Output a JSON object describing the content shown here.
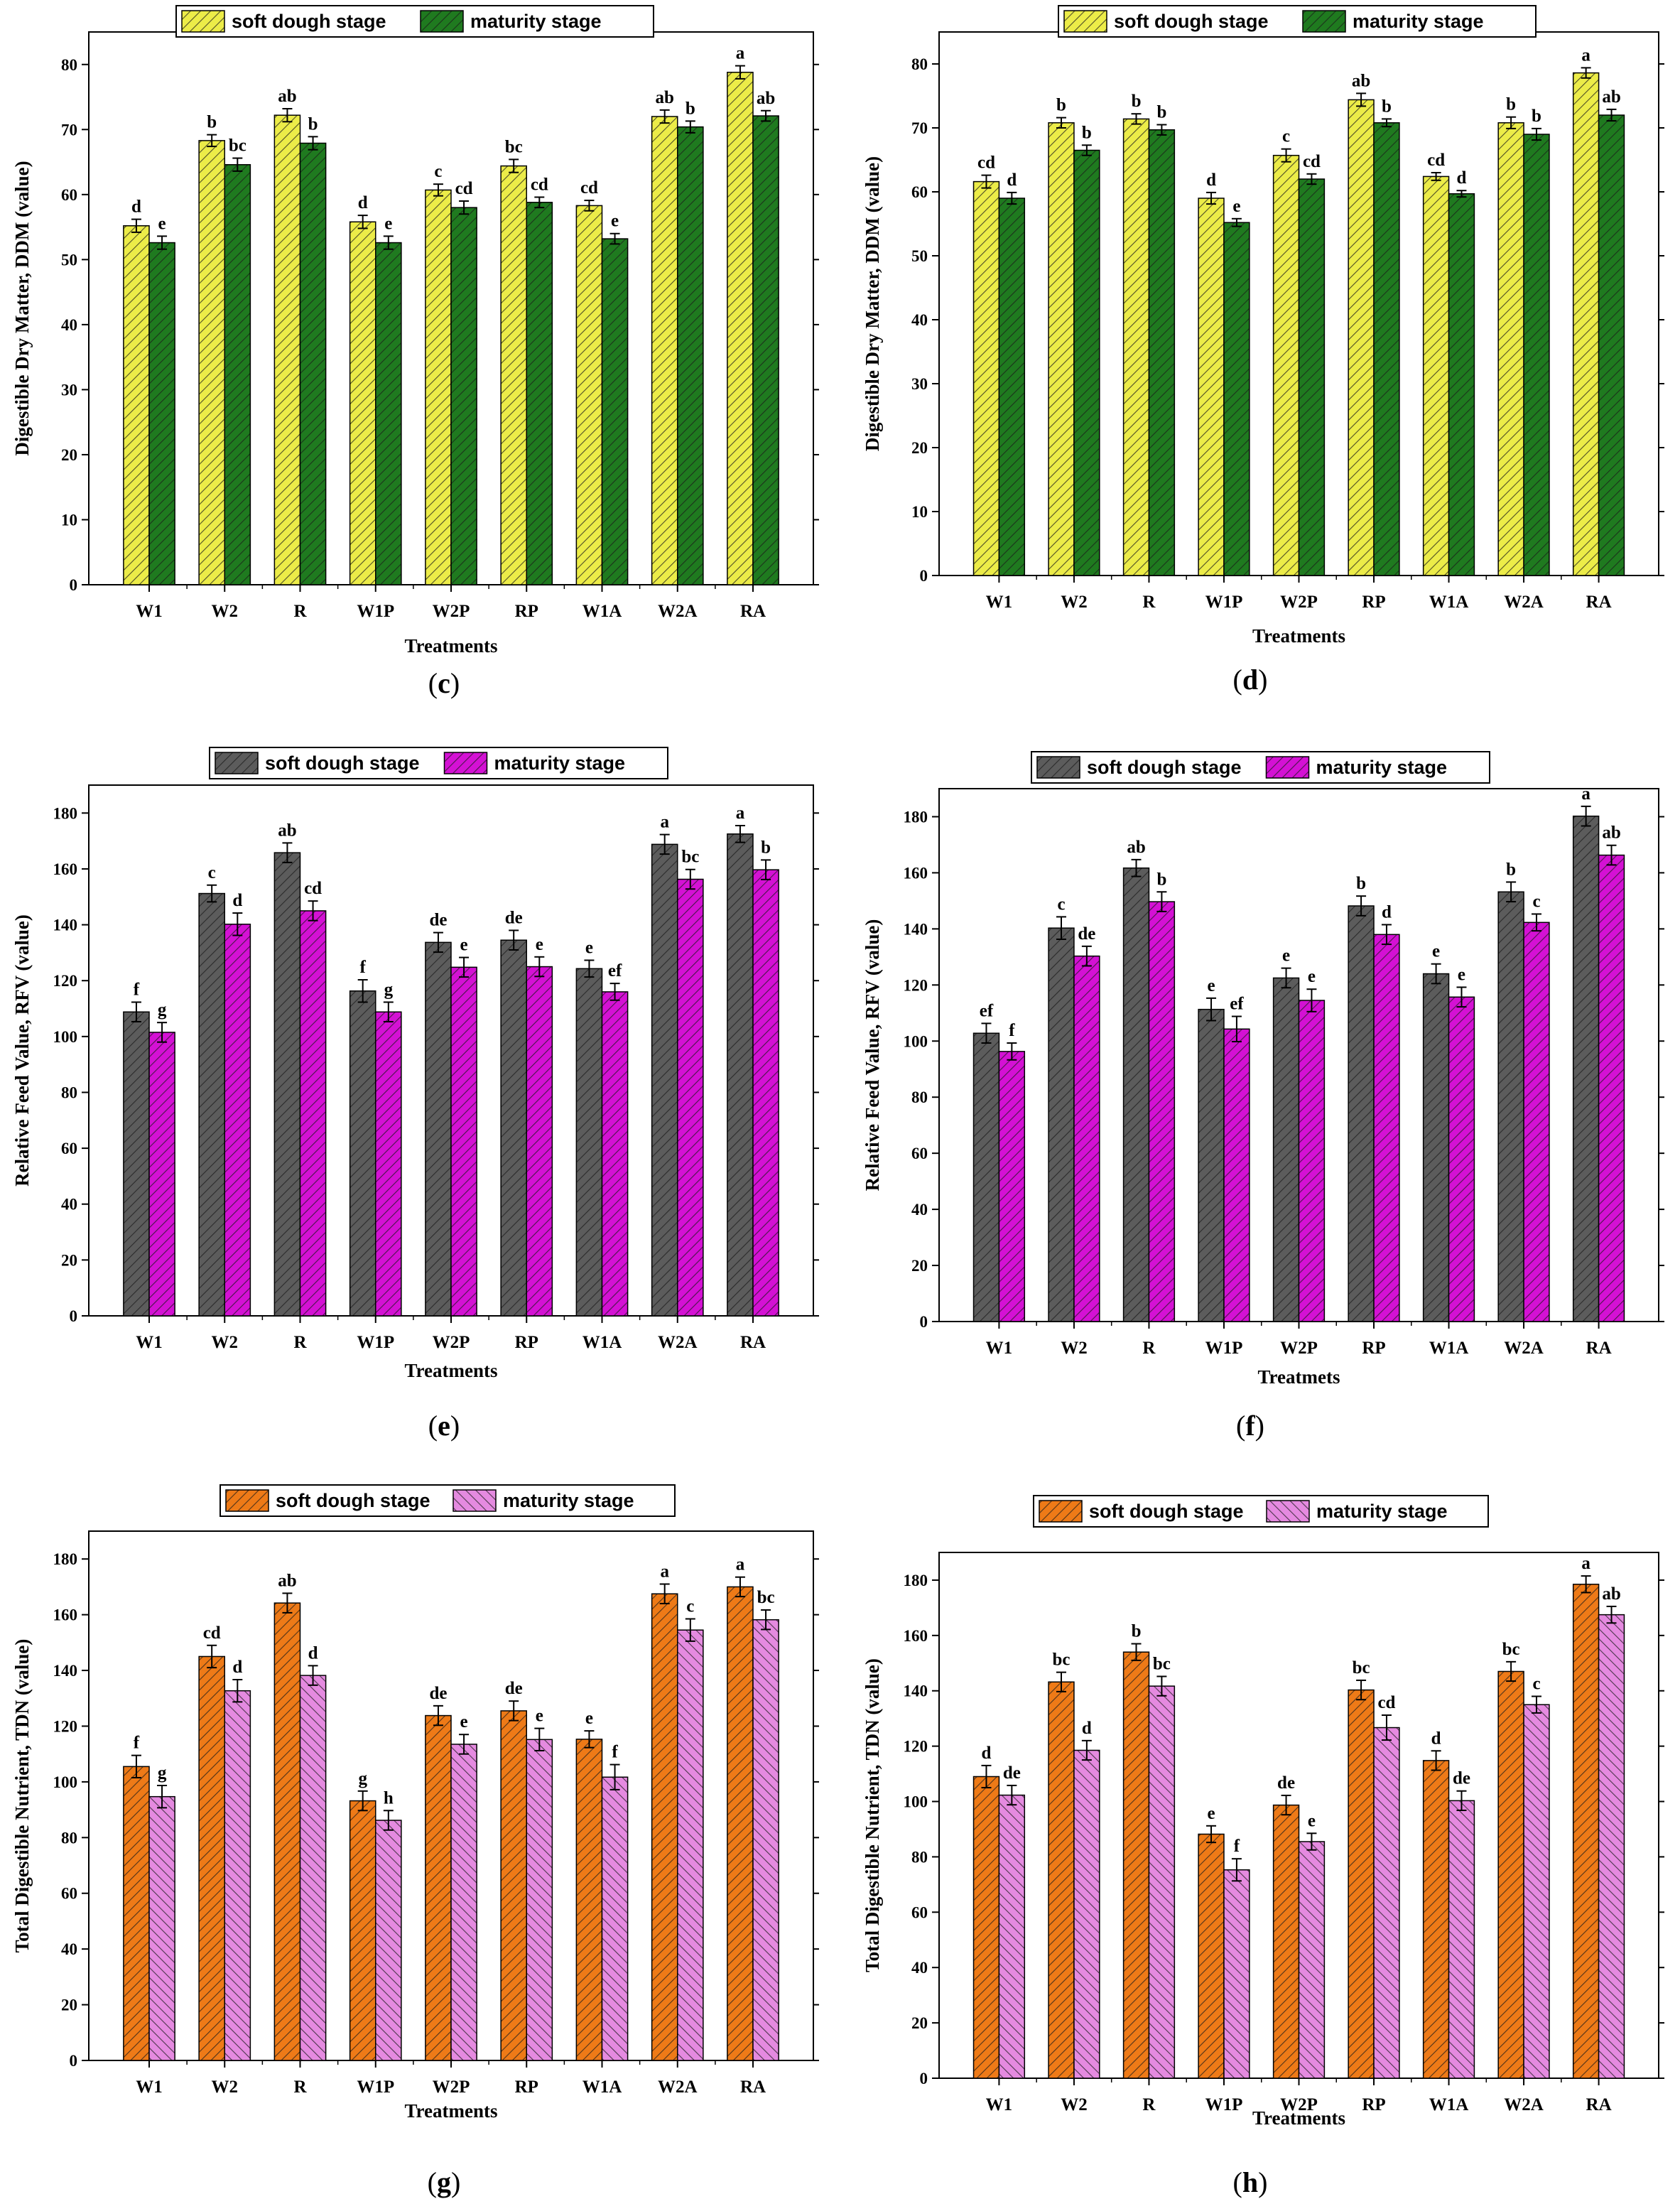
{
  "colors": {
    "yellow": "#ecec48",
    "green": "#1f7a1f",
    "gray": "#5c5c5c",
    "magenta": "#d411d4",
    "orange": "#ee7a17",
    "pink": "#e58ae0"
  },
  "chart_data": [
    {
      "type": "bar",
      "panel": "(c)",
      "categories": [
        "W1",
        "W2",
        "R",
        "W1P",
        "W2P",
        "RP",
        "W1A",
        "W2A",
        "RA"
      ],
      "xlabel": "Treatments",
      "ylabel": "Digestible Dry Matter, DDM (value)",
      "ylim": [
        0,
        85
      ],
      "yticks": [
        0,
        10,
        20,
        30,
        40,
        50,
        60,
        70,
        80
      ],
      "legend_position": "top",
      "series": [
        {
          "name": "soft dough stage",
          "color": "yellow",
          "values": [
            55.2,
            68.3,
            72.2,
            55.8,
            60.7,
            64.4,
            58.3,
            72.0,
            78.8
          ],
          "errors": [
            1.0,
            0.9,
            1.0,
            1.0,
            0.9,
            1.0,
            0.8,
            1.0,
            1.0
          ],
          "labels": [
            "d",
            "b",
            "ab",
            "d",
            "c",
            "bc",
            "cd",
            "ab",
            "a"
          ]
        },
        {
          "name": "maturity stage",
          "color": "green",
          "values": [
            52.6,
            64.6,
            67.9,
            52.6,
            58.0,
            58.8,
            53.2,
            70.4,
            72.1
          ],
          "errors": [
            1.0,
            1.0,
            1.0,
            1.0,
            1.0,
            0.8,
            0.8,
            0.9,
            0.8
          ],
          "labels": [
            "e",
            "bc",
            "b",
            "e",
            "cd",
            "cd",
            "e",
            "b",
            "ab"
          ]
        }
      ]
    },
    {
      "type": "bar",
      "panel": "(d)",
      "categories": [
        "W1",
        "W2",
        "R",
        "W1P",
        "W2P",
        "RP",
        "W1A",
        "W2A",
        "RA"
      ],
      "xlabel": "Treatments",
      "ylabel": "Digestible Dry Matter, DDM (value)",
      "ylim": [
        0,
        85
      ],
      "yticks": [
        0,
        10,
        20,
        30,
        40,
        50,
        60,
        70,
        80
      ],
      "legend_position": "top",
      "series": [
        {
          "name": "soft dough stage",
          "color": "yellow",
          "values": [
            61.6,
            70.8,
            71.4,
            59.0,
            65.7,
            74.4,
            62.4,
            70.8,
            78.6
          ],
          "errors": [
            1.0,
            0.8,
            0.8,
            0.9,
            1.0,
            1.0,
            0.6,
            0.9,
            0.8
          ],
          "labels": [
            "cd",
            "b",
            "b",
            "d",
            "c",
            "ab",
            "cd",
            "b",
            "a"
          ]
        },
        {
          "name": "maturity stage",
          "color": "green",
          "values": [
            59.0,
            66.5,
            69.7,
            55.2,
            62.0,
            70.8,
            59.7,
            69.0,
            72.0
          ],
          "errors": [
            0.9,
            0.8,
            0.8,
            0.6,
            0.8,
            0.6,
            0.5,
            0.9,
            0.9
          ],
          "labels": [
            "d",
            "b",
            "b",
            "e",
            "cd",
            "b",
            "d",
            "b",
            "ab"
          ]
        }
      ]
    },
    {
      "type": "bar",
      "panel": "(e)",
      "categories": [
        "W1",
        "W2",
        "R",
        "W1P",
        "W2P",
        "RP",
        "W1A",
        "W2A",
        "RA"
      ],
      "xlabel": "Treatments",
      "ylabel": "Relative Feed Value, RFV (value)",
      "ylim": [
        0,
        190
      ],
      "yticks": [
        0,
        20,
        40,
        60,
        80,
        100,
        120,
        140,
        160,
        180
      ],
      "legend_position": "top",
      "series": [
        {
          "name": "soft dough stage",
          "color": "gray",
          "values": [
            108.8,
            151.2,
            165.8,
            116.3,
            133.7,
            134.5,
            124.3,
            168.8,
            172.5
          ],
          "errors": [
            3.5,
            3.0,
            3.5,
            4.0,
            3.5,
            3.5,
            3.0,
            3.5,
            3.0
          ],
          "labels": [
            "f",
            "c",
            "ab",
            "f",
            "de",
            "de",
            "e",
            "a",
            "a"
          ]
        },
        {
          "name": "maturity stage",
          "color": "magenta",
          "values": [
            101.5,
            140.2,
            145.0,
            108.8,
            124.8,
            125.0,
            116.0,
            156.3,
            159.7
          ],
          "errors": [
            3.5,
            4.0,
            3.5,
            3.5,
            3.5,
            3.5,
            3.0,
            3.5,
            3.5
          ],
          "labels": [
            "g",
            "d",
            "cd",
            "g",
            "e",
            "e",
            "ef",
            "bc",
            "b"
          ]
        }
      ]
    },
    {
      "type": "bar",
      "panel": "(f)",
      "categories": [
        "W1",
        "W2",
        "R",
        "W1P",
        "W2P",
        "RP",
        "W1A",
        "W2A",
        "RA"
      ],
      "xlabel": "Treatmets",
      "ylabel": "Relative Feed Value, RFV (value)",
      "ylim": [
        0,
        190
      ],
      "yticks": [
        0,
        20,
        40,
        60,
        80,
        100,
        120,
        140,
        160,
        180
      ],
      "legend_position": "top",
      "series": [
        {
          "name": "soft dough stage",
          "color": "gray",
          "values": [
            102.8,
            140.3,
            161.7,
            111.3,
            122.5,
            148.2,
            124.0,
            153.2,
            180.2
          ],
          "errors": [
            3.5,
            4.0,
            3.0,
            4.0,
            3.5,
            3.5,
            3.5,
            3.5,
            3.5
          ],
          "labels": [
            "ef",
            "c",
            "ab",
            "e",
            "e",
            "b",
            "e",
            "b",
            "a"
          ]
        },
        {
          "name": "maturity stage",
          "color": "magenta",
          "values": [
            96.3,
            130.3,
            149.7,
            104.3,
            114.5,
            138.0,
            115.7,
            142.3,
            166.3
          ],
          "errors": [
            3.0,
            3.5,
            3.5,
            4.5,
            4.0,
            3.5,
            3.5,
            3.0,
            3.5
          ],
          "labels": [
            "f",
            "de",
            "b",
            "ef",
            "e",
            "d",
            "e",
            "c",
            "ab"
          ]
        }
      ]
    },
    {
      "type": "bar",
      "panel": "(g)",
      "categories": [
        "W1",
        "W2",
        "R",
        "W1P",
        "W2P",
        "RP",
        "W1A",
        "W2A",
        "RA"
      ],
      "xlabel": "Treatments",
      "ylabel": "Total Digestible Nutrient, TDN (value)",
      "ylim": [
        0,
        190
      ],
      "yticks": [
        0,
        20,
        40,
        60,
        80,
        100,
        120,
        140,
        160,
        180
      ],
      "legend_position": "top",
      "series": [
        {
          "name": "soft dough stage",
          "color": "orange",
          "values": [
            105.5,
            145.0,
            164.2,
            93.2,
            123.8,
            125.5,
            115.3,
            167.5,
            170.0
          ],
          "errors": [
            4.0,
            4.0,
            3.5,
            3.5,
            3.5,
            3.5,
            3.0,
            3.5,
            3.5
          ],
          "labels": [
            "f",
            "cd",
            "ab",
            "g",
            "de",
            "de",
            "e",
            "a",
            "a"
          ]
        },
        {
          "name": "maturity stage",
          "color": "pink",
          "values": [
            94.7,
            132.7,
            138.2,
            86.2,
            113.5,
            115.2,
            101.7,
            154.5,
            158.2
          ],
          "errors": [
            4.0,
            4.0,
            3.5,
            3.5,
            3.5,
            4.0,
            4.5,
            4.0,
            3.5
          ],
          "labels": [
            "g",
            "d",
            "d",
            "h",
            "e",
            "e",
            "f",
            "c",
            "bc"
          ]
        }
      ]
    },
    {
      "type": "bar",
      "panel": "(h)",
      "categories": [
        "W1",
        "W2",
        "R",
        "W1P",
        "W2P",
        "RP",
        "W1A",
        "W2A",
        "RA"
      ],
      "xlabel": "Treatments",
      "ylabel": "Total Digestible Nutrient, TDN (value)",
      "ylim": [
        0,
        190
      ],
      "yticks": [
        0,
        20,
        40,
        60,
        80,
        100,
        120,
        140,
        160,
        180
      ],
      "legend_position": "top",
      "series": [
        {
          "name": "soft dough stage",
          "color": "orange",
          "values": [
            109.0,
            143.2,
            154.0,
            88.2,
            98.7,
            140.3,
            114.8,
            147.0,
            178.5
          ],
          "errors": [
            4.0,
            3.5,
            3.0,
            3.0,
            3.5,
            3.5,
            3.5,
            3.5,
            3.0
          ],
          "labels": [
            "d",
            "bc",
            "b",
            "e",
            "de",
            "bc",
            "d",
            "bc",
            "a"
          ]
        },
        {
          "name": "maturity stage",
          "color": "pink",
          "values": [
            102.3,
            118.5,
            141.7,
            75.3,
            85.5,
            126.7,
            100.3,
            135.0,
            167.5
          ],
          "errors": [
            3.5,
            3.5,
            3.5,
            4.0,
            3.0,
            4.5,
            3.5,
            3.0,
            3.0
          ],
          "labels": [
            "de",
            "d",
            "bc",
            "f",
            "e",
            "cd",
            "de",
            "c",
            "ab"
          ]
        }
      ]
    }
  ]
}
